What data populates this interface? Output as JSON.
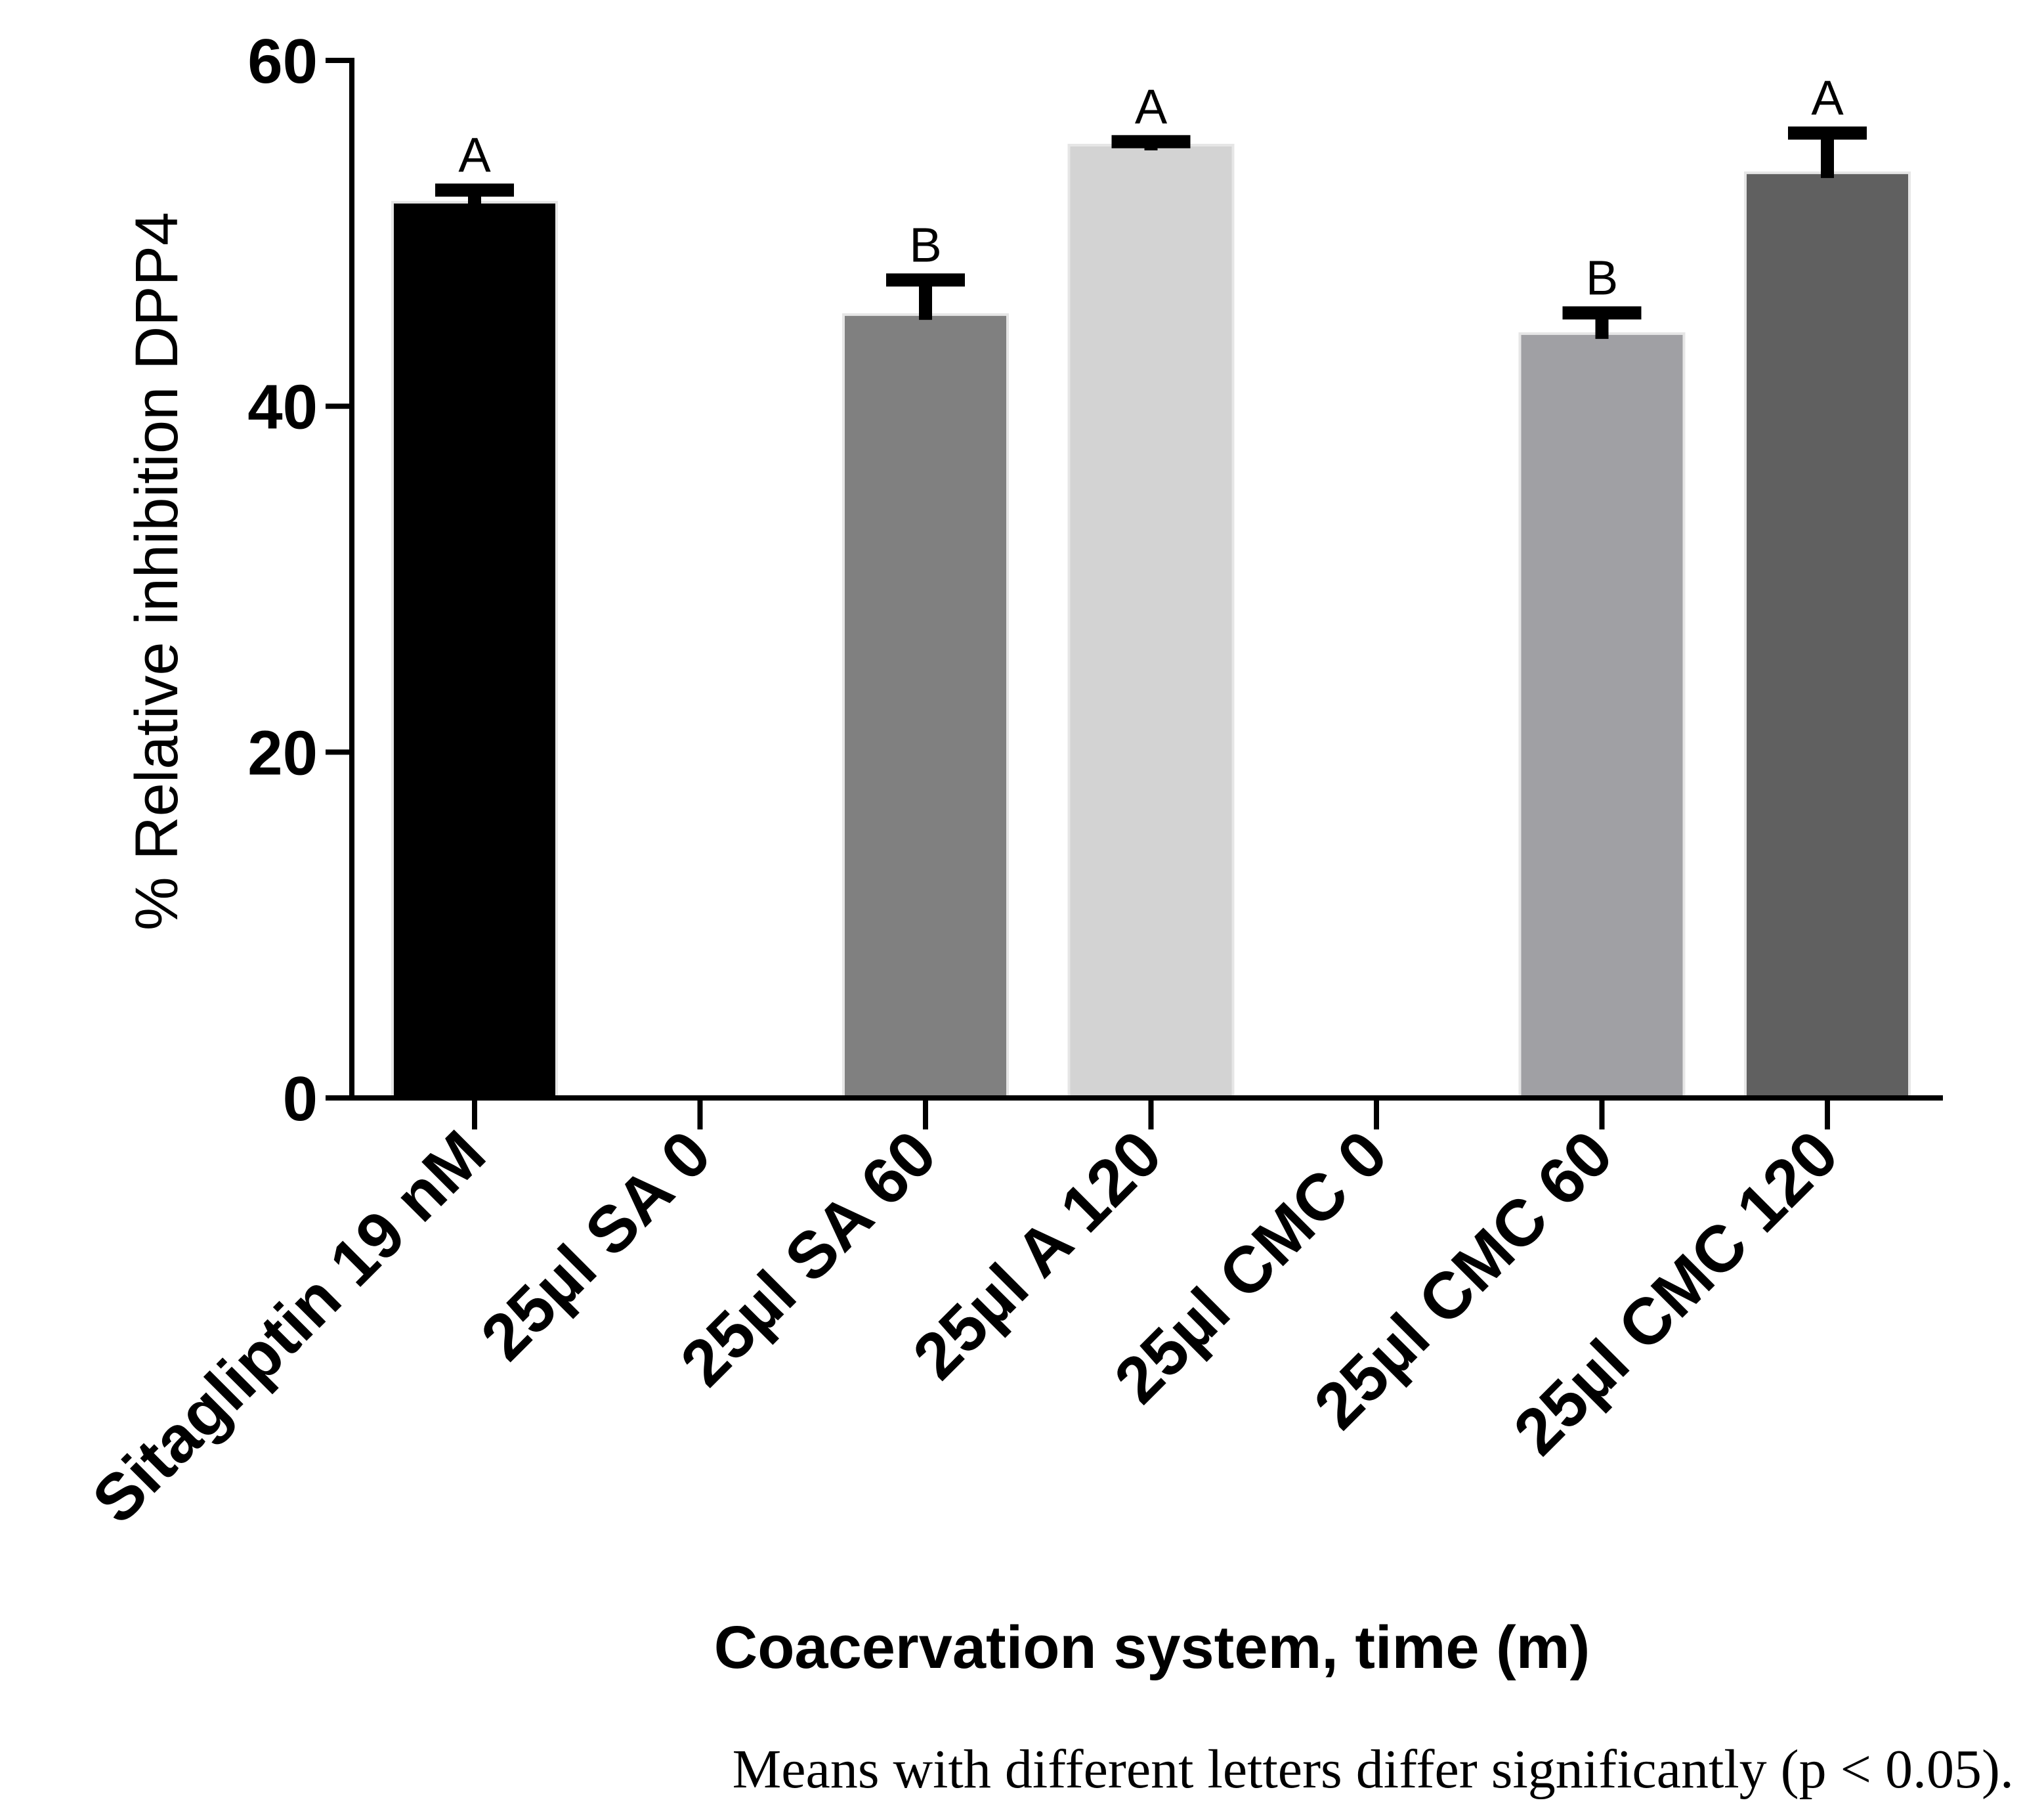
{
  "chart_data": {
    "type": "bar",
    "title": "",
    "xlabel": "Coacervation system, time (m)",
    "ylabel": "% Relative inhibition DPP4",
    "ylim": [
      0,
      60
    ],
    "yticks": [
      0,
      20,
      40,
      60
    ],
    "categories": [
      "Sitagliptin 19 nM",
      "25µl SA 0",
      "25µl SA 60",
      "25µl A 120",
      "25µl CMC 0",
      "25µl CMC 60",
      "25µl CMC 120"
    ],
    "values": [
      51.8,
      0,
      45.3,
      55.1,
      0,
      44.2,
      53.5
    ],
    "errors": [
      0.7,
      0,
      2.0,
      0.2,
      0,
      1.2,
      2.3
    ],
    "significance": [
      "A",
      "",
      "B",
      "A",
      "",
      "B",
      "A"
    ],
    "bar_colors": [
      "#000000",
      "#ffffff",
      "#808080",
      "#d3d3d3",
      "#ffffff",
      "#a0a0a4",
      "#606060"
    ],
    "footnote": "Means with different letters differ significantly (p < 0.05)."
  }
}
